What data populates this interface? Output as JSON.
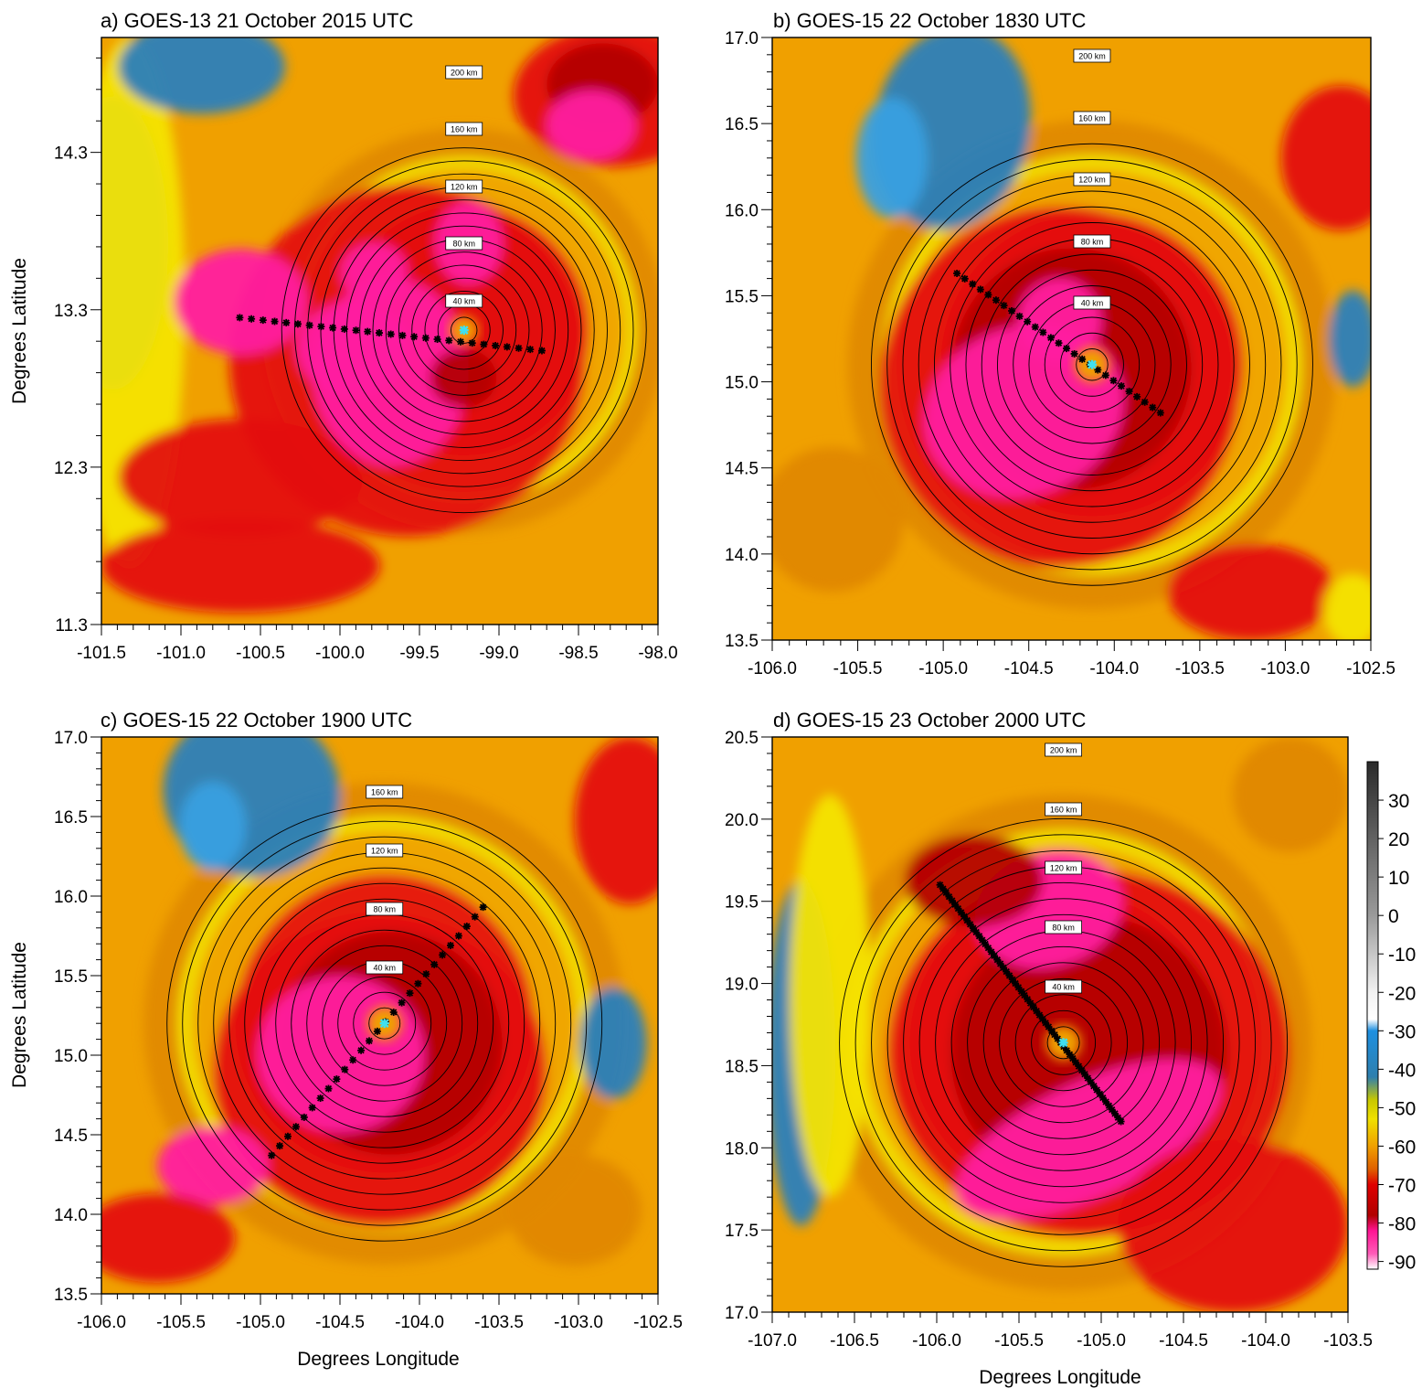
{
  "panels": [
    {
      "id": "a",
      "title": "a) GOES-13   21 October   2015 UTC",
      "x_ticks": [
        "-101.5",
        "-101.0",
        "-100.5",
        "-100.0",
        "-99.5",
        "-99.0",
        "-98.5",
        "-98.0"
      ],
      "y_ticks": [
        "14.3",
        "13.3",
        "12.3",
        "11.3"
      ],
      "xlabel": "",
      "ylabel": "Degrees Latitude",
      "xlim": [
        -101.5,
        -98.0
      ],
      "ylim": [
        11.3,
        15.03
      ],
      "center": [
        -99.22,
        13.17
      ],
      "ring_labels": [
        "200 km",
        "160 km",
        "120 km",
        "80 km",
        "40 km"
      ],
      "transect": [
        [
          -100.63,
          13.25
        ],
        [
          -98.73,
          13.04
        ]
      ]
    },
    {
      "id": "b",
      "title": "b) GOES-15   22 October   1830 UTC",
      "x_ticks": [
        "-106.0",
        "-105.5",
        "-105.0",
        "-104.5",
        "-104.0",
        "-103.5",
        "-103.0",
        "-102.5"
      ],
      "y_ticks": [
        "17.0",
        "16.5",
        "16.0",
        "15.5",
        "15.0",
        "14.5",
        "14.0",
        "13.5"
      ],
      "xlabel": "",
      "ylabel": "",
      "xlim": [
        -106.0,
        -102.5
      ],
      "ylim": [
        13.5,
        17.0
      ],
      "center": [
        -104.13,
        15.1
      ],
      "ring_labels": [
        "200 km",
        "160 km",
        "120 km",
        "80 km",
        "40 km"
      ],
      "transect": [
        [
          -104.92,
          15.63
        ],
        [
          -103.73,
          14.82
        ]
      ]
    },
    {
      "id": "c",
      "title": "c) GOES-15   22 October   1900 UTC",
      "x_ticks": [
        "-106.0",
        "-105.5",
        "-105.0",
        "-104.5",
        "-104.0",
        "-103.5",
        "-103.0",
        "-102.5"
      ],
      "y_ticks": [
        "17.0",
        "16.5",
        "16.0",
        "15.5",
        "15.0",
        "14.5",
        "14.0",
        "13.5"
      ],
      "xlabel": "Degrees Longitude",
      "ylabel": "Degrees Latitude",
      "xlim": [
        -106.0,
        -102.5
      ],
      "ylim": [
        13.5,
        17.0
      ],
      "center": [
        -104.22,
        15.2
      ],
      "ring_labels": [
        "160 km",
        "120 km",
        "80 km",
        "40 km"
      ],
      "transect": [
        [
          -104.93,
          14.37
        ],
        [
          -103.6,
          15.93
        ]
      ]
    },
    {
      "id": "d",
      "title": "d) GOES-15   23 October   2000 UTC",
      "x_ticks": [
        "-107.0",
        "-106.5",
        "-106.0",
        "-105.5",
        "-105.0",
        "-104.5",
        "-104.0",
        "-103.5"
      ],
      "y_ticks": [
        "20.5",
        "20.0",
        "19.5",
        "19.0",
        "18.5",
        "18.0",
        "17.5",
        "17.0"
      ],
      "xlabel": "Degrees Longitude",
      "ylabel": "",
      "xlim": [
        -107.0,
        -103.5
      ],
      "ylim": [
        17.0,
        20.5
      ],
      "center": [
        -105.23,
        18.64
      ],
      "ring_labels": [
        "200 km",
        "160 km",
        "120 km",
        "80 km",
        "40 km"
      ],
      "transect": [
        [
          -105.98,
          19.6
        ],
        [
          -104.88,
          18.16
        ]
      ]
    }
  ],
  "colorbar": {
    "ticks": [
      "30",
      "20",
      "10",
      "0",
      "-10",
      "-20",
      "-30",
      "-40",
      "-50",
      "-60",
      "-70",
      "-80",
      "-90"
    ],
    "range": [
      40,
      -92
    ],
    "stops": [
      {
        "v": 40,
        "c": "#2a2a2a"
      },
      {
        "v": 0,
        "c": "#9a9a9a"
      },
      {
        "v": -20,
        "c": "#f2f2f2"
      },
      {
        "v": -27,
        "c": "#ffffff"
      },
      {
        "v": -30,
        "c": "#1e90e0"
      },
      {
        "v": -42,
        "c": "#2e7fae"
      },
      {
        "v": -48,
        "c": "#c8c800"
      },
      {
        "v": -53,
        "c": "#f0e000"
      },
      {
        "v": -60,
        "c": "#f0a000"
      },
      {
        "v": -66,
        "c": "#e06000"
      },
      {
        "v": -70,
        "c": "#e00000"
      },
      {
        "v": -78,
        "c": "#b00000"
      },
      {
        "v": -82,
        "c": "#ff1493"
      },
      {
        "v": -88,
        "c": "#ff5cb8"
      },
      {
        "v": -92,
        "c": "#ffffff"
      }
    ]
  },
  "colors": {
    "pink": "#ff1ca0",
    "red": "#e41010",
    "darkred": "#b40000",
    "orange": "#f0a000",
    "dark_orange": "#e08800",
    "yellow": "#f4e400",
    "olive": "#c8c800",
    "blue": "#2a7fba",
    "light_blue": "#3aa0e0",
    "center_marker": "#40e0f0"
  }
}
